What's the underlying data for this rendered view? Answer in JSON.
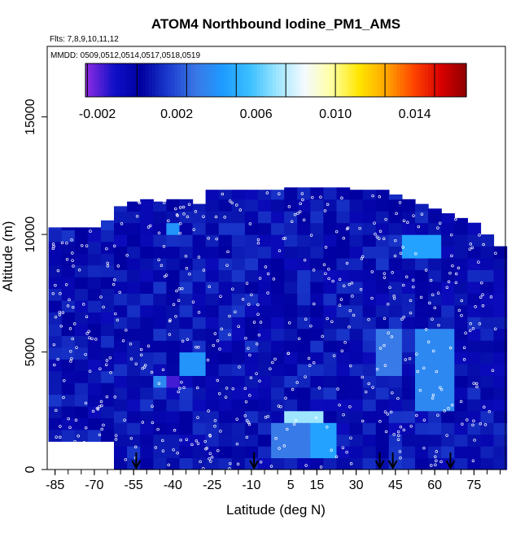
{
  "chart_data": {
    "type": "heatmap",
    "title": "ATOM4 Northbound Iodine_PM1_AMS",
    "flights_note": "Flts: 7,8,9,10,11,12",
    "dates_note": "MMDD: 0509,0512,0514,0517,0518,0519",
    "xlabel": "Latitude (deg N)",
    "ylabel": "Altitude (m)",
    "xlim": [
      -88,
      87
    ],
    "ylim": [
      0,
      18000
    ],
    "x_ticks": [
      -85,
      -70,
      -55,
      -40,
      -25,
      -10,
      5,
      15,
      30,
      45,
      60,
      75
    ],
    "y_ticks": [
      0,
      5000,
      10000,
      15000
    ],
    "colorbar": {
      "range": [
        -0.0026,
        0.0166
      ],
      "tick_values": [
        -0.002,
        0.002,
        0.006,
        0.01,
        0.014
      ],
      "tick_labels": [
        "-0.002",
        "0.002",
        "0.006",
        "0.010",
        "0.014"
      ],
      "colors": [
        "#8a2be2",
        "#1010c8",
        "#0000a0",
        "#1c3ccf",
        "#3a78e6",
        "#1e9bff",
        "#3cc0ff",
        "#9ee6ff",
        "#f5faff",
        "#ffffa0",
        "#ffe600",
        "#ffa500",
        "#ff4500",
        "#d90000",
        "#8b0000"
      ]
    },
    "latitude_bands": [
      -85,
      -80,
      -75,
      -70,
      -65,
      -60,
      -55,
      -50,
      -45,
      -40,
      -35,
      -30,
      -25,
      -20,
      -15,
      -10,
      -5,
      0,
      5,
      10,
      15,
      20,
      25,
      30,
      35,
      40,
      45,
      50,
      55,
      60,
      65,
      70,
      75,
      80,
      85
    ],
    "altitude_top_by_band": [
      10300,
      10300,
      10300,
      10300,
      10600,
      11200,
      11400,
      11500,
      11400,
      11500,
      11500,
      11300,
      11900,
      11900,
      11900,
      11900,
      11900,
      11900,
      12000,
      12000,
      12000,
      12000,
      12000,
      11900,
      11900,
      11900,
      11700,
      11500,
      11300,
      11100,
      10900,
      10700,
      10500,
      10000,
      9500
    ],
    "background_value": 0.0004,
    "enhanced_regions": [
      {
        "lat_range": [
          -37,
          -27
        ],
        "alt_range": [
          4100,
          5000
        ],
        "value": 0.004
      },
      {
        "lat_range": [
          -49,
          -43
        ],
        "alt_range": [
          3500,
          4100
        ],
        "value": 0.0035
      },
      {
        "lat_range": [
          -42,
          -38
        ],
        "alt_range": [
          3500,
          4100
        ],
        "value": -0.0018
      },
      {
        "lat_range": [
          3,
          17
        ],
        "alt_range": [
          1800,
          2600
        ],
        "value": 0.007
      },
      {
        "lat_range": [
          12,
          20
        ],
        "alt_range": [
          300,
          1800
        ],
        "value": 0.0045
      },
      {
        "lat_range": [
          -4,
          12
        ],
        "alt_range": [
          300,
          1800
        ],
        "value": 0.003
      },
      {
        "lat_range": [
          50,
          62
        ],
        "alt_range": [
          9200,
          9800
        ],
        "value": 0.0045
      },
      {
        "lat_range": [
          55,
          65
        ],
        "alt_range": [
          2500,
          6000
        ],
        "value": 0.0035
      },
      {
        "lat_range": [
          -42,
          -38
        ],
        "alt_range": [
          10100,
          10500
        ],
        "value": 0.004
      },
      {
        "lat_range": [
          40,
          48
        ],
        "alt_range": [
          4000,
          6000
        ],
        "value": 0.003
      }
    ],
    "descent_markers_lat": [
      -54,
      -9,
      39,
      44,
      66
    ]
  }
}
